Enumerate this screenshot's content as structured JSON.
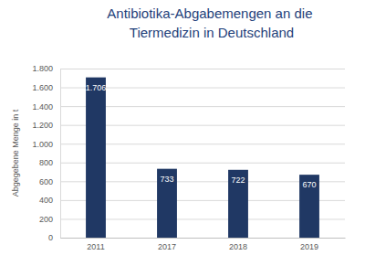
{
  "chart_data": {
    "type": "bar",
    "title": "Antibiotika-Abgabemengen an die Tiermedizin in Deutschland",
    "ylabel": "Abgegebene Menge in t",
    "categories": [
      "2011",
      "2017",
      "2018",
      "2019"
    ],
    "values": [
      1706,
      733,
      722,
      670
    ],
    "value_labels": [
      "1.706",
      "733",
      "722",
      "670"
    ],
    "color": "#203864",
    "ylim": [
      0,
      1800
    ],
    "yticks": [
      0,
      200,
      400,
      600,
      800,
      {
        "value": 1000,
        "label": "1.000"
      },
      {
        "value": 1200,
        "label": "1.200"
      },
      {
        "value": 1400,
        "label": "1.400"
      },
      {
        "value": 1600,
        "label": "1.600"
      },
      {
        "value": 1800,
        "label": "1.800"
      }
    ],
    "grid": true,
    "data_labels": true
  }
}
